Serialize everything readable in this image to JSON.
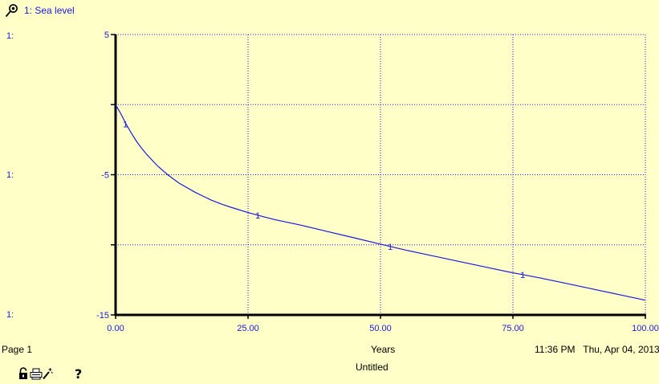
{
  "legend": {
    "entries": [
      {
        "marker": "1",
        "label": "1: Sea level",
        "color": "#1a1adc"
      }
    ],
    "pin_icon": "pin-icon"
  },
  "scale_labels": [
    "1:",
    "1:",
    "1:"
  ],
  "footer": {
    "page_label": "Page 1",
    "x_axis_title": "Years",
    "timestamp": "11:36 PM   Thu, Apr 04, 2013",
    "document_title": "Untitled",
    "icons": [
      "lock-icon",
      "print-icon",
      "magic-wand-icon",
      "help-icon"
    ],
    "help_label": "?"
  },
  "colors": {
    "background": "#ffffc8",
    "series": "#1a1adc",
    "grid": "#1a1adc",
    "axis": "#000000"
  },
  "chart_data": {
    "type": "line",
    "title": "",
    "xlabel": "Years",
    "ylabel": "",
    "xlim": [
      0,
      100
    ],
    "ylim": [
      -15,
      5
    ],
    "x_ticks": [
      0,
      25,
      50,
      75,
      100
    ],
    "x_tick_labels": [
      "0.00",
      "25.00",
      "50.00",
      "75.00",
      "100.00"
    ],
    "y_ticks": [
      5,
      0,
      -5,
      -10,
      -15
    ],
    "y_tick_labels": [
      "5",
      "",
      "-5",
      "",
      "-15"
    ],
    "grid": true,
    "series": [
      {
        "name": "Sea level",
        "marker_label": "1",
        "x": [
          0,
          1,
          2,
          3,
          4,
          5,
          6,
          7,
          8,
          10,
          12,
          15,
          18,
          20,
          22,
          25,
          28,
          30,
          35,
          40,
          45,
          50,
          55,
          60,
          65,
          70,
          75,
          80,
          85,
          90,
          95,
          100
        ],
        "y": [
          0,
          -0.65,
          -1.4,
          -2.05,
          -2.65,
          -3.15,
          -3.6,
          -4.0,
          -4.4,
          -5.05,
          -5.6,
          -6.25,
          -6.8,
          -7.1,
          -7.35,
          -7.7,
          -8.0,
          -8.2,
          -8.6,
          -9.05,
          -9.5,
          -9.95,
          -10.4,
          -10.8,
          -11.2,
          -11.6,
          -12.0,
          -12.35,
          -12.75,
          -13.15,
          -13.55,
          -13.95
        ],
        "markers_at_x": [
          2,
          27,
          52,
          77
        ]
      }
    ]
  }
}
